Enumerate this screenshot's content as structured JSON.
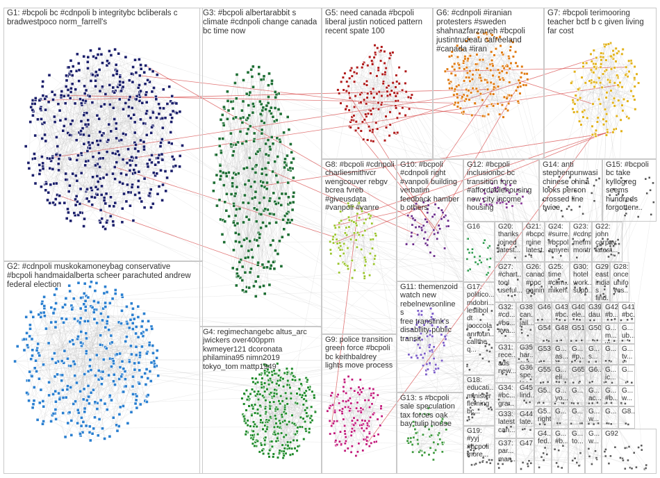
{
  "colors": {
    "border": "#c9c9c9",
    "edge": "#b5b5b5",
    "edge_highlight": "#d43a3a",
    "text": "#333333"
  },
  "groups": [
    {
      "id": "G1",
      "label": "G1: #bcpoli bc #cdnpoli b integritybc bcliberals c\nbradwestpoco norm_farrell's",
      "color": "#1b1f6b"
    },
    {
      "id": "G2",
      "label": "G2: #cdnpoli muskokamoneybag conservative\n#bcpoli handmaidalberta scheer parachuted andrew\nfederal election",
      "color": "#2a7fd0"
    },
    {
      "id": "G3",
      "label": "G3: #bcpoli albertarabbit s\nclimate #cdnpoli change canada\nbc time now",
      "color": "#1e6e34"
    },
    {
      "id": "G4",
      "label": "G4: regimechangebc altus_arc\njwickers over400ppm\nkwmeyer121 dcoronata\nphilamina95 nimn2019\ntokyo_tom mattp1949",
      "color": "#1f8a2a"
    },
    {
      "id": "G5",
      "label": "G5: need canada #bcpoli\nliberal justin noticed pattern\nrecent spate 100",
      "color": "#b01919"
    },
    {
      "id": "G6",
      "label": "G6: #cdnpoli #iranian\nprotesters #sweden\nshahnazfarzaneh #bcpoli\njustintrudeau cafreeland\n#canada #iran",
      "color": "#e07a10"
    },
    {
      "id": "G7",
      "label": "G7: #bcpoli terimooring\nteacher bctf b c given living\nfar cost",
      "color": "#e2b21a"
    },
    {
      "id": "G8",
      "label": "G8: #bcpoli #cdnpoli\ncharliesmithvcr\nwengcouver rebgv\nbcrea fvreb\n#giveusdata\n#vanpoli #vanre",
      "color": "#9ac42b"
    },
    {
      "id": "G9",
      "label": "G9: police transition\ngreen force #bcpoli\nbc keithbaldrey\nlights move process",
      "color": "#c2187a"
    },
    {
      "id": "G10",
      "label": "G10: #bcpoli\n#cdnpoli right\n#vanpoli building\nverbatim\nfeedback hamber\nb others",
      "color": "#6a2a8a"
    },
    {
      "id": "G11",
      "label": "G11: themenzoid\nwatch new\nrebelnewsonline s\nfree translink's\ndisability public\ntransit",
      "color": "#7a5ac8"
    },
    {
      "id": "G12",
      "label": "G12: #bcpoli\ninclusionbc bc\ntransition force\n#affordablehousing\nnew city income\nhousing",
      "color": "#8a3a9a"
    },
    {
      "id": "G13",
      "label": "G13: s #bcpoli\nsale speculation\ntax forces oak\nbay tulip house",
      "color": "#3f9a3f"
    },
    {
      "id": "G14",
      "label": "G14: anti\nstephenpunwasi\nchinese china\nlooks person\ncrossed line\ntwice",
      "color": "#555555"
    },
    {
      "id": "G15",
      "label": "G15: #bcpoli\nbc take\nkyllogreg\nseems\nhundreds\nforgotten...",
      "color": "#555555"
    },
    {
      "id": "G16",
      "label": "G16",
      "color": "#2a9a4a"
    },
    {
      "id": "G17",
      "label": "G17:\npolitico...\nmdobri...\nleslibol dt\njcoccola\nannoun...\ncallthe q...",
      "color": "#5a5a5a"
    },
    {
      "id": "G18",
      "label": "G18:\neducati...\nminister\nfleming\nbc...",
      "color": "#5a5a5a"
    },
    {
      "id": "G19",
      "label": "G19:\n#yyj\n#bcpoli\nmore...",
      "color": "#5a5a5a"
    },
    {
      "id": "G20",
      "label": "G20:\nthanks\njoined\nlatest...",
      "color": "#5a5a5a"
    },
    {
      "id": "G21",
      "label": "G21:\n#bcpoli\nmine\nlatest...",
      "color": "#5a5a5a"
    },
    {
      "id": "G22",
      "label": "G22:\njohn\ncarpay\nlatest...",
      "color": "#5a5a5a"
    },
    {
      "id": "G23",
      "label": "G23:\n#cdnpoli\nmefmbc\nmontre...",
      "color": "#5a5a5a"
    },
    {
      "id": "G24",
      "label": "G24:\n#surre...\n#bcpoli\namyrei...",
      "color": "#5a5a5a"
    },
    {
      "id": "G25",
      "label": "G25:\ntime\n#clim...\nmikeh...",
      "color": "#5a5a5a"
    },
    {
      "id": "G26",
      "label": "G26:\ncanada\n#ppc\ngainin...",
      "color": "#5a5a5a"
    },
    {
      "id": "G27",
      "label": "G27:\n#chart...\ntool\nuseful...",
      "color": "#5a5a5a"
    },
    {
      "id": "G28",
      "label": "G28:\nonce\nunifo...\nyes...",
      "color": "#5a5a5a"
    },
    {
      "id": "G29",
      "label": "G29:\neast\nindia...\ns find...",
      "color": "#5a5a5a"
    },
    {
      "id": "G30",
      "label": "G30:\nhotel\nwork...\nsupp...",
      "color": "#5a5a5a"
    },
    {
      "id": "G31",
      "label": "G31:\nrece...\nads\nnew...",
      "color": "#5a5a5a"
    },
    {
      "id": "G32",
      "label": "G32:\n#cd...\n#bc...\n#va...",
      "color": "#5a5a5a"
    },
    {
      "id": "G33",
      "label": "G33:\nlatest\ncan...",
      "color": "#5a5a5a"
    },
    {
      "id": "G34",
      "label": "G34:\n#bc...\ngra...",
      "color": "#5a5a5a"
    },
    {
      "id": "G35",
      "label": "G35:\nhar...\nout...",
      "color": "#5a5a5a"
    },
    {
      "id": "G36",
      "label": "G36:\nspe...\nloo...",
      "color": "#5a5a5a"
    },
    {
      "id": "G37",
      "label": "G37:\npar...\nman...",
      "color": "#5a5a5a"
    },
    {
      "id": "G38",
      "label": "G38:\ncan...\njail...",
      "color": "#5a5a5a"
    },
    {
      "id": "G39",
      "label": "G39:\ndau...",
      "color": "#5a5a5a"
    },
    {
      "id": "G40",
      "label": "G40:\nele...",
      "color": "#5a5a5a"
    },
    {
      "id": "G41",
      "label": "G41:\n#bc...",
      "color": "#5a5a5a"
    },
    {
      "id": "G42",
      "label": "G42:\n#b...",
      "color": "#5a5a5a"
    },
    {
      "id": "G43",
      "label": "G43:\n#bc...",
      "color": "#5a5a5a"
    },
    {
      "id": "G44",
      "label": "G44:\nlate...",
      "color": "#5a5a5a"
    },
    {
      "id": "G45",
      "label": "G45:\nlind...",
      "color": "#5a5a5a"
    },
    {
      "id": "G46",
      "label": "G46",
      "color": "#5a5a5a"
    },
    {
      "id": "G47",
      "label": "G47",
      "color": "#5a5a5a"
    },
    {
      "id": "G48",
      "label": "G48",
      "color": "#5a5a5a"
    },
    {
      "id": "G49",
      "label": "G4...\nfed...",
      "color": "#5a5a5a"
    },
    {
      "id": "G50",
      "label": "G50",
      "color": "#5a5a5a"
    },
    {
      "id": "G51",
      "label": "G51",
      "color": "#5a5a5a"
    },
    {
      "id": "G52",
      "label": "G5...\nright",
      "color": "#5a5a5a"
    },
    {
      "id": "G53",
      "label": "G53",
      "color": "#5a5a5a"
    },
    {
      "id": "G54",
      "label": "G54",
      "color": "#5a5a5a"
    },
    {
      "id": "G55",
      "label": "G55",
      "color": "#5a5a5a"
    },
    {
      "id": "G56",
      "label": "G5...",
      "color": "#5a5a5a"
    },
    {
      "id": "G57",
      "label": "G...\nm...\nw...",
      "color": "#5a5a5a"
    },
    {
      "id": "G58",
      "label": "G...\nas...",
      "color": "#5a5a5a"
    },
    {
      "id": "G59",
      "label": "G...\n#p...",
      "color": "#5a5a5a"
    },
    {
      "id": "G60",
      "label": "G...\ns...",
      "color": "#5a5a5a"
    },
    {
      "id": "G61",
      "label": "G...\nub...",
      "color": "#5a5a5a"
    },
    {
      "id": "G62",
      "label": "G...\neli...",
      "color": "#5a5a5a"
    },
    {
      "id": "G63",
      "label": "G65",
      "color": "#5a5a5a"
    },
    {
      "id": "G64",
      "label": "G6...",
      "color": "#5a5a5a"
    },
    {
      "id": "G65",
      "label": "G...",
      "color": "#5a5a5a"
    },
    {
      "id": "G66",
      "label": "G...\ntv...",
      "color": "#5a5a5a"
    },
    {
      "id": "G67",
      "label": "G...\nyo...",
      "color": "#5a5a5a"
    },
    {
      "id": "G68",
      "label": "G...",
      "color": "#5a5a5a"
    },
    {
      "id": "G69",
      "label": "G...\nac...",
      "color": "#5a5a5a"
    },
    {
      "id": "G70",
      "label": "G...\nic...",
      "color": "#5a5a5a"
    },
    {
      "id": "G71",
      "label": "G...",
      "color": "#5a5a5a"
    },
    {
      "id": "G72",
      "label": "G...",
      "color": "#5a5a5a"
    },
    {
      "id": "G73",
      "label": "G...",
      "color": "#5a5a5a"
    },
    {
      "id": "G74",
      "label": "G...\nw...",
      "color": "#5a5a5a"
    },
    {
      "id": "G75",
      "label": "G...\n#b...",
      "color": "#5a5a5a"
    },
    {
      "id": "G76",
      "label": "G...\nw...",
      "color": "#5a5a5a"
    },
    {
      "id": "G77",
      "label": "G...\n#b...",
      "color": "#5a5a5a"
    },
    {
      "id": "G78",
      "label": "G...\nto...",
      "color": "#5a5a5a"
    },
    {
      "id": "G79",
      "label": "G...\nw...",
      "color": "#5a5a5a"
    },
    {
      "id": "G80",
      "label": "G...",
      "color": "#5a5a5a"
    },
    {
      "id": "G81",
      "label": "G8...",
      "color": "#5a5a5a"
    },
    {
      "id": "G82",
      "label": "G92",
      "color": "#5a5a5a"
    }
  ]
}
